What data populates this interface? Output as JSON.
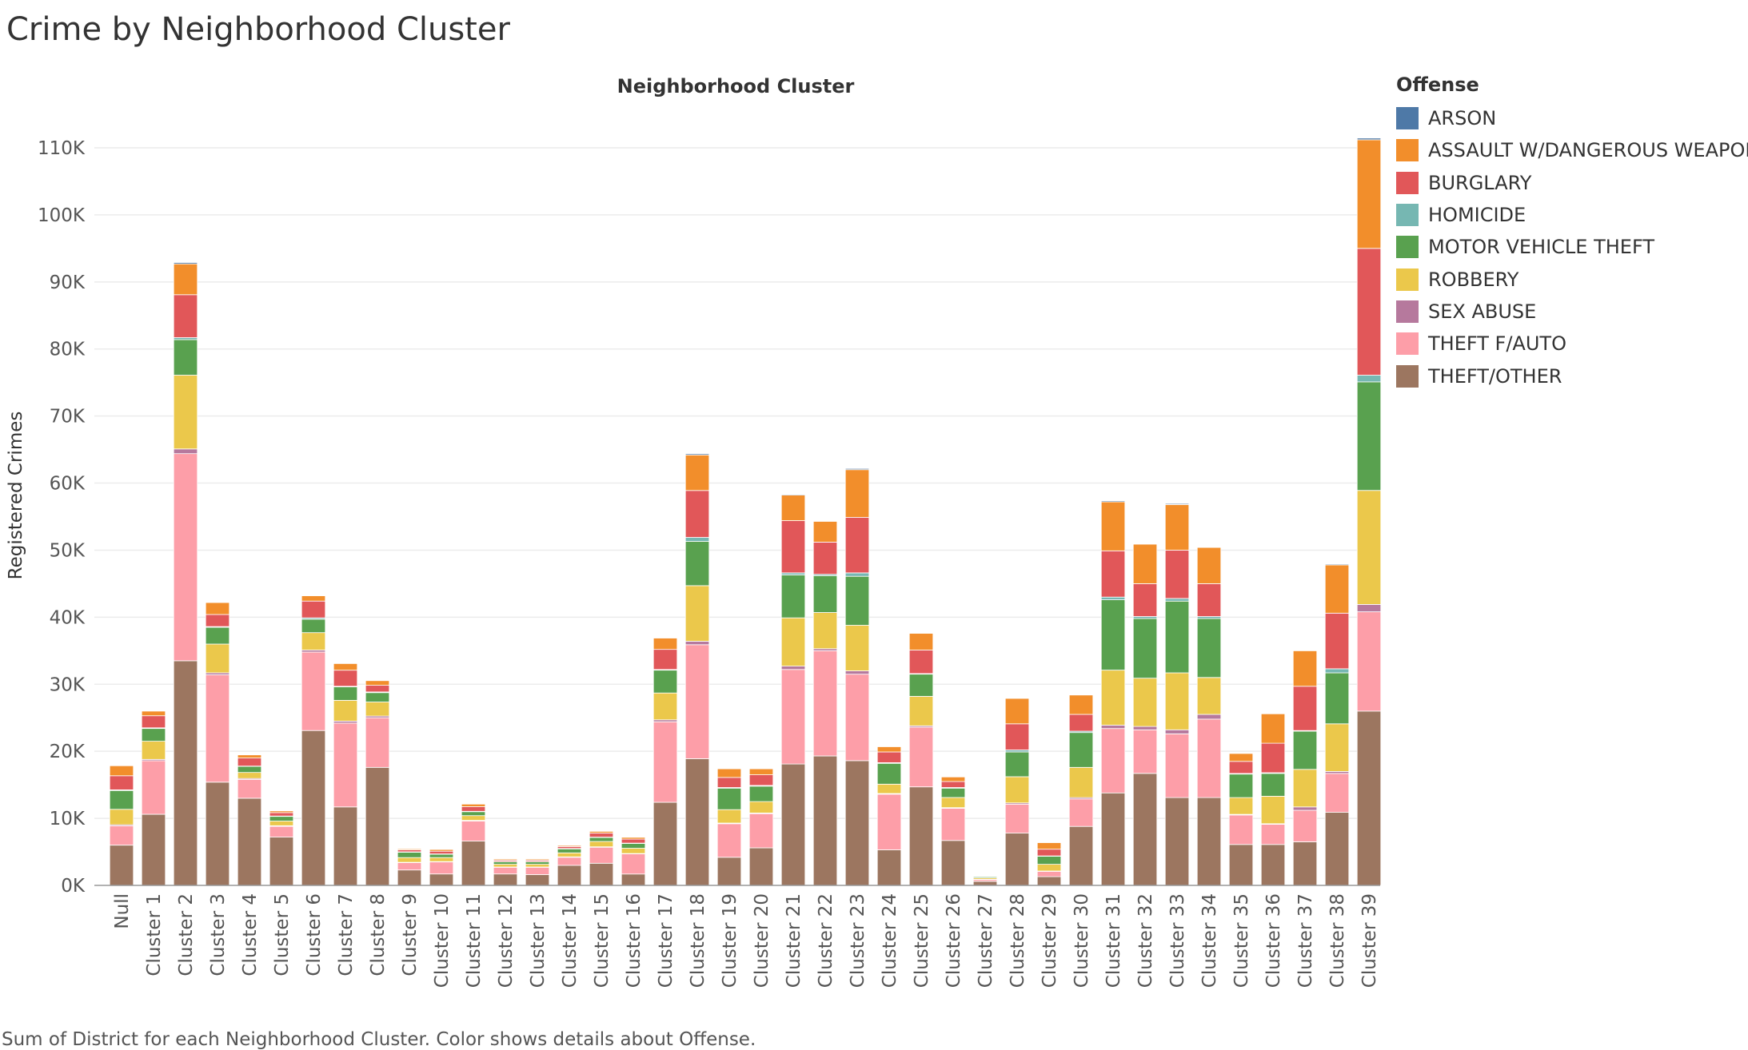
{
  "title": "Crime by Neighborhood Cluster",
  "footer": "Sum of District for each Neighborhood Cluster.  Color shows details about Offense.",
  "chart_data": {
    "type": "bar",
    "stacked": true,
    "column_header": "Neighborhood Cluster",
    "ylabel": "Registered Crimes",
    "ylim": [
      0,
      110000
    ],
    "yticks": [
      0,
      10000,
      20000,
      30000,
      40000,
      50000,
      60000,
      70000,
      80000,
      90000,
      100000,
      110000
    ],
    "ytick_labels": [
      "0K",
      "10K",
      "20K",
      "30K",
      "40K",
      "50K",
      "60K",
      "70K",
      "80K",
      "90K",
      "100K",
      "110K"
    ],
    "grid": "horizontal",
    "legend_title": "Offense",
    "legend_position": "right",
    "categories": [
      "Null",
      "Cluster 1",
      "Cluster 2",
      "Cluster 3",
      "Cluster 4",
      "Cluster 5",
      "Cluster 6",
      "Cluster 7",
      "Cluster 8",
      "Cluster 9",
      "Cluster 10",
      "Cluster 11",
      "Cluster 12",
      "Cluster 13",
      "Cluster 14",
      "Cluster 15",
      "Cluster 16",
      "Cluster 17",
      "Cluster 18",
      "Cluster 19",
      "Cluster 20",
      "Cluster 21",
      "Cluster 22",
      "Cluster 23",
      "Cluster 24",
      "Cluster 25",
      "Cluster 26",
      "Cluster 27",
      "Cluster 28",
      "Cluster 29",
      "Cluster 30",
      "Cluster 31",
      "Cluster 32",
      "Cluster 33",
      "Cluster 34",
      "Cluster 35",
      "Cluster 36",
      "Cluster 37",
      "Cluster 38",
      "Cluster 39"
    ],
    "series": [
      {
        "name": "THEFT/OTHER",
        "color": "#9c7660",
        "values": [
          6000,
          10600,
          33500,
          15400,
          13000,
          7200,
          23100,
          11700,
          17600,
          2300,
          1700,
          6600,
          1700,
          1600,
          3000,
          3300,
          1700,
          12400,
          18900,
          4200,
          5600,
          18100,
          19300,
          18600,
          5300,
          14700,
          6700,
          600,
          7800,
          1300,
          8800,
          13800,
          16700,
          13100,
          13100,
          6100,
          6100,
          6500,
          10900,
          26000
        ]
      },
      {
        "name": "THEFT F/AUTO",
        "color": "#fd9ea8",
        "values": [
          2900,
          8000,
          30900,
          16000,
          2800,
          1600,
          11700,
          12500,
          7400,
          1100,
          1800,
          3000,
          1000,
          1100,
          1200,
          2400,
          3000,
          12000,
          17000,
          5000,
          5100,
          14100,
          15700,
          12900,
          8300,
          8900,
          4800,
          300,
          4300,
          800,
          4100,
          9600,
          6500,
          9500,
          11700,
          4400,
          3000,
          4700,
          5800,
          14800
        ]
      },
      {
        "name": "SEX ABUSE",
        "color": "#b6799d",
        "values": [
          150,
          200,
          700,
          300,
          150,
          100,
          300,
          300,
          250,
          50,
          50,
          100,
          50,
          50,
          50,
          50,
          50,
          300,
          500,
          100,
          100,
          500,
          300,
          500,
          100,
          200,
          100,
          20,
          200,
          50,
          200,
          500,
          500,
          600,
          700,
          100,
          100,
          500,
          300,
          1100
        ]
      },
      {
        "name": "ROBBERY",
        "color": "#ebc84b",
        "values": [
          2300,
          2700,
          11000,
          4300,
          900,
          700,
          2600,
          3100,
          2100,
          700,
          600,
          700,
          400,
          400,
          600,
          800,
          800,
          4000,
          8300,
          2000,
          1700,
          7200,
          5400,
          6800,
          1400,
          4400,
          1500,
          200,
          3900,
          1000,
          4500,
          8200,
          7200,
          8500,
          5500,
          2500,
          4100,
          5600,
          7100,
          17000
        ]
      },
      {
        "name": "MOTOR VEHICLE THEFT",
        "color": "#59a14f",
        "values": [
          2800,
          1900,
          5300,
          2500,
          900,
          700,
          2000,
          2000,
          1400,
          800,
          500,
          600,
          400,
          400,
          600,
          600,
          700,
          3400,
          6600,
          3200,
          2300,
          6400,
          5500,
          7300,
          3100,
          3300,
          1400,
          200,
          3700,
          1200,
          5200,
          10500,
          8900,
          10700,
          8800,
          3500,
          3400,
          5700,
          7600,
          16200
        ]
      },
      {
        "name": "HOMICIDE",
        "color": "#76b7b2",
        "values": [
          100,
          100,
          300,
          100,
          50,
          50,
          200,
          100,
          100,
          50,
          50,
          50,
          20,
          20,
          50,
          50,
          50,
          100,
          600,
          100,
          100,
          300,
          200,
          500,
          100,
          100,
          100,
          10,
          300,
          50,
          200,
          400,
          300,
          400,
          300,
          100,
          100,
          100,
          600,
          1000
        ]
      },
      {
        "name": "BURGLARY",
        "color": "#e15759",
        "values": [
          2100,
          1800,
          6400,
          1800,
          1200,
          500,
          2500,
          2400,
          1000,
          300,
          400,
          700,
          200,
          200,
          300,
          600,
          600,
          3000,
          7000,
          1500,
          1600,
          7800,
          4800,
          8300,
          1600,
          3500,
          900,
          100,
          3900,
          1000,
          2500,
          6900,
          4900,
          7200,
          4900,
          1800,
          4400,
          6600,
          8300,
          18900
        ]
      },
      {
        "name": "ASSAULT W/DANGEROUS WEAPON",
        "color": "#f28e2b",
        "values": [
          1500,
          700,
          4600,
          1800,
          500,
          300,
          800,
          1000,
          700,
          200,
          300,
          400,
          200,
          200,
          200,
          300,
          300,
          1700,
          5300,
          1300,
          900,
          3800,
          3100,
          7100,
          800,
          2500,
          700,
          100,
          3800,
          1000,
          2900,
          7300,
          5900,
          6800,
          5400,
          1200,
          4400,
          5300,
          7200,
          16200
        ]
      },
      {
        "name": "ARSON",
        "color": "#4e79a7",
        "values": [
          60,
          60,
          200,
          50,
          20,
          20,
          60,
          50,
          50,
          10,
          10,
          30,
          10,
          10,
          10,
          20,
          20,
          60,
          180,
          50,
          50,
          120,
          100,
          170,
          50,
          60,
          30,
          5,
          100,
          30,
          60,
          160,
          100,
          140,
          100,
          40,
          70,
          100,
          130,
          250
        ]
      }
    ]
  }
}
